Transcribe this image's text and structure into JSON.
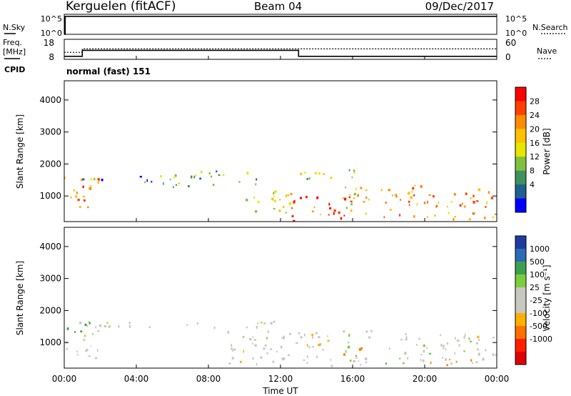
{
  "header": {
    "station": "Kerguelen (fitACF)",
    "beam": "Beam 04",
    "date": "09/Dec/2017"
  },
  "panels": {
    "nsky_label": "N.Sky",
    "nsky_ticks": [
      "10^5",
      "10^0"
    ],
    "nsearch_label": "N.Search",
    "nsearch_ticks": [
      "10^5",
      "10^0"
    ],
    "freq_label_line1": "Freq.",
    "freq_label_line2": "[MHz]",
    "freq_ticks": [
      "18",
      "8"
    ],
    "nave_label": "Nave",
    "nave_ticks": [
      "60",
      "0"
    ],
    "cpid_label": "CPID",
    "cpid_text": "normal (fast) 151"
  },
  "axes": {
    "ylabel": "Slant Range [km]",
    "yticks": [
      "1000",
      "2000",
      "3000",
      "4000"
    ],
    "xticks": [
      "00:00",
      "04:00",
      "08:00",
      "12:00",
      "16:00",
      "20:00",
      "00:00"
    ],
    "xlabel": "Time UT"
  },
  "colorbars": {
    "power_label": "Power [dB]",
    "power_ticks": [
      "28",
      "24",
      "20",
      "16",
      "12",
      "8",
      "4"
    ],
    "power_colors": [
      "#ff0000",
      "#ff4000",
      "#ff8c00",
      "#ffc000",
      "#e6e600",
      "#80c040",
      "#409060",
      "#206090",
      "#0000ff"
    ],
    "velocity_label": "Velocity [m s⁻¹]",
    "velocity_ticks": [
      "1000",
      "500",
      "100",
      "25",
      "-25",
      "-100",
      "-500",
      "-1000"
    ],
    "velocity_colors": [
      "#1e3ca0",
      "#2c6ab4",
      "#3ca050",
      "#7ccc3c",
      "#c8c8c0",
      "#c8c8c0",
      "#ffb000",
      "#ff7000",
      "#ff2000",
      "#e00000"
    ]
  },
  "chart_data": [
    {
      "type": "heatmap",
      "title": "",
      "xlabel": "Time UT",
      "ylabel": "Slant Range [km]",
      "xlim": [
        0,
        24
      ],
      "ylim": [
        200,
        4600
      ],
      "colorbar": "Power [dB]",
      "regions": [
        {
          "t0": 0.0,
          "t1": 2.0,
          "r0": 500,
          "r1": 1700,
          "value": 22
        },
        {
          "t0": 1.0,
          "t1": 6.0,
          "r0": 1400,
          "r1": 1650,
          "value": 6
        },
        {
          "t0": 6.0,
          "t1": 11.0,
          "r0": 1300,
          "r1": 1800,
          "value": 8
        },
        {
          "t0": 9.5,
          "t1": 12.5,
          "r0": 500,
          "r1": 1200,
          "value": 14
        },
        {
          "t0": 12.5,
          "t1": 16.0,
          "r0": 250,
          "r1": 1100,
          "value": 26
        },
        {
          "t0": 13.0,
          "t1": 16.5,
          "r0": 1500,
          "r1": 1900,
          "value": 14
        },
        {
          "t0": 15.0,
          "t1": 17.0,
          "r0": 400,
          "r1": 1300,
          "value": 16
        },
        {
          "t0": 17.5,
          "t1": 20.0,
          "r0": 300,
          "r1": 1400,
          "value": 24
        },
        {
          "t0": 20.0,
          "t1": 24.0,
          "r0": 300,
          "r1": 1300,
          "value": 22
        }
      ]
    },
    {
      "type": "heatmap",
      "title": "",
      "xlabel": "Time UT",
      "ylabel": "Slant Range [km]",
      "xlim": [
        0,
        24
      ],
      "ylim": [
        200,
        4600
      ],
      "colorbar": "Velocity [m s⁻¹]",
      "regions": [
        {
          "t0": 0.0,
          "t1": 2.0,
          "r0": 500,
          "r1": 1700,
          "value": 0
        },
        {
          "t0": 0.0,
          "t1": 1.5,
          "r0": 1300,
          "r1": 1700,
          "value": 150
        },
        {
          "t0": 2.0,
          "t1": 12.0,
          "r0": 1500,
          "r1": 1700,
          "value": 0
        },
        {
          "t0": 9.0,
          "t1": 17.0,
          "r0": 300,
          "r1": 1400,
          "value": 0
        },
        {
          "t0": 15.0,
          "t1": 16.5,
          "r0": 600,
          "r1": 900,
          "value": -300
        },
        {
          "t0": 17.0,
          "t1": 18.0,
          "r0": 300,
          "r1": 450,
          "value": 150
        },
        {
          "t0": 18.0,
          "t1": 24.0,
          "r0": 300,
          "r1": 1300,
          "value": 0
        },
        {
          "t0": 20.0,
          "t1": 23.0,
          "r0": 300,
          "r1": 500,
          "value": -200
        }
      ]
    },
    {
      "type": "line",
      "title": "",
      "series": [
        {
          "x": [
            0,
            0.05,
            0.05,
            24
          ],
          "y": [
            1,
            1,
            30000,
            30000
          ]
        }
      ]
    },
    {
      "type": "line",
      "title": "",
      "xlim": [
        0,
        24
      ],
      "ylim": [
        8,
        18
      ],
      "series": [
        {
          "x": [
            0,
            1,
            1,
            13,
            13,
            24
          ],
          "y": [
            9.5,
            9.5,
            12.5,
            12.5,
            9.5,
            9.5
          ]
        },
        {
          "x": [
            0,
            1,
            1,
            24
          ],
          "y": [
            11.5,
            11.5,
            13.2,
            13.2
          ]
        }
      ]
    }
  ]
}
